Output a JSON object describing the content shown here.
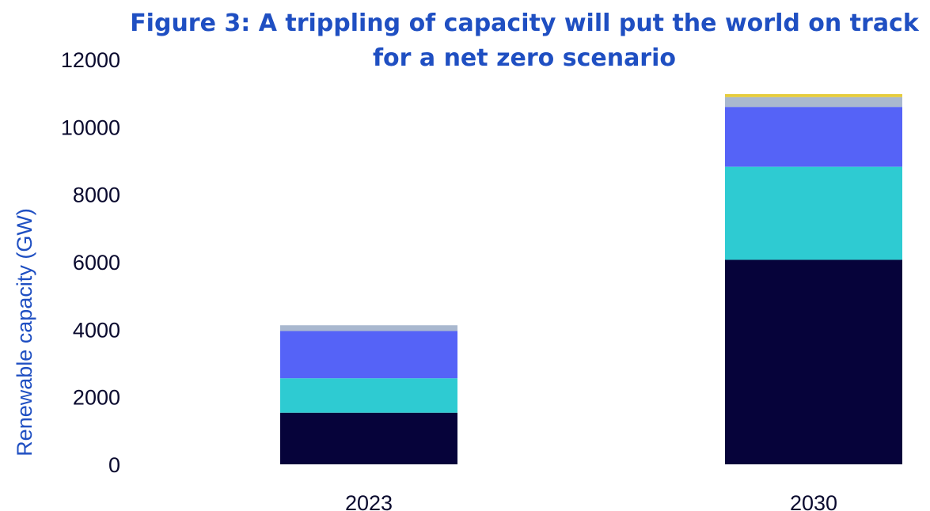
{
  "colors": {
    "title": "#1f4fc2",
    "axis_label": "#1f4fc2",
    "tick_text": "#0a0a2e",
    "series": [
      "#06033a",
      "#2ecbd2",
      "#5563f7",
      "#a9b8cf",
      "#e6cc3c"
    ]
  },
  "chart_data": {
    "type": "bar",
    "stacked": true,
    "title_lines": [
      "Figure 3: A trippling of capacity will put the world on track",
      "for a net zero scenario"
    ],
    "xlabel": "",
    "ylabel": "Renewable capacity (GW)",
    "categories": [
      "2023",
      "2030"
    ],
    "ylim": [
      0,
      12000
    ],
    "yticks": [
      0,
      2000,
      4000,
      6000,
      8000,
      10000,
      12000
    ],
    "grid": false,
    "legend": "none",
    "series": [
      {
        "values": [
          1530,
          6060
        ]
      },
      {
        "values": [
          1020,
          2760
        ]
      },
      {
        "values": [
          1400,
          1770
        ]
      },
      {
        "values": [
          170,
          290
        ]
      },
      {
        "values": [
          0,
          90
        ]
      }
    ]
  }
}
